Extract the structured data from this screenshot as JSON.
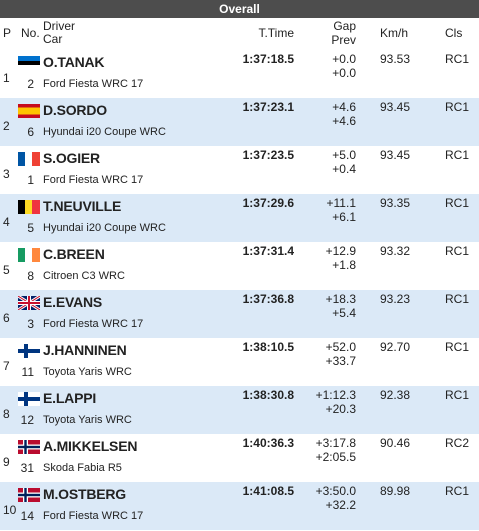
{
  "header": {
    "title": "Overall"
  },
  "columns": {
    "p": "P",
    "no": "No.",
    "driver": "Driver",
    "car": "Car",
    "time": "T.Time",
    "gap": "Gap",
    "prev": "Prev",
    "kmh": "Km/h",
    "cls": "Cls"
  },
  "rows": [
    {
      "pos": 1,
      "no": 2,
      "driver": "O.TANAK",
      "car": "Ford Fiesta WRC 17",
      "time": "1:37:18.5",
      "gap": "+0.0",
      "prev": "+0.0",
      "kmh": "93.53",
      "cls": "RC1"
    },
    {
      "pos": 2,
      "no": 6,
      "driver": "D.SORDO",
      "car": "Hyundai i20 Coupe WRC",
      "time": "1:37:23.1",
      "gap": "+4.6",
      "prev": "+4.6",
      "kmh": "93.45",
      "cls": "RC1"
    },
    {
      "pos": 3,
      "no": 1,
      "driver": "S.OGIER",
      "car": "Ford Fiesta WRC 17",
      "time": "1:37:23.5",
      "gap": "+5.0",
      "prev": "+0.4",
      "kmh": "93.45",
      "cls": "RC1"
    },
    {
      "pos": 4,
      "no": 5,
      "driver": "T.NEUVILLE",
      "car": "Hyundai i20 Coupe WRC",
      "time": "1:37:29.6",
      "gap": "+11.1",
      "prev": "+6.1",
      "kmh": "93.35",
      "cls": "RC1"
    },
    {
      "pos": 5,
      "no": 8,
      "driver": "C.BREEN",
      "car": "Citroen C3 WRC",
      "time": "1:37:31.4",
      "gap": "+12.9",
      "prev": "+1.8",
      "kmh": "93.32",
      "cls": "RC1"
    },
    {
      "pos": 6,
      "no": 3,
      "driver": "E.EVANS",
      "car": "Ford Fiesta WRC 17",
      "time": "1:37:36.8",
      "gap": "+18.3",
      "prev": "+5.4",
      "kmh": "93.23",
      "cls": "RC1"
    },
    {
      "pos": 7,
      "no": 11,
      "driver": "J.HANNINEN",
      "car": "Toyota Yaris WRC",
      "time": "1:38:10.5",
      "gap": "+52.0",
      "prev": "+33.7",
      "kmh": "92.70",
      "cls": "RC1"
    },
    {
      "pos": 8,
      "no": 12,
      "driver": "E.LAPPI",
      "car": "Toyota Yaris WRC",
      "time": "1:38:30.8",
      "gap": "+1:12.3",
      "prev": "+20.3",
      "kmh": "92.38",
      "cls": "RC1"
    },
    {
      "pos": 9,
      "no": 31,
      "driver": "A.MIKKELSEN",
      "car": "Skoda Fabia R5",
      "time": "1:40:36.3",
      "gap": "+3:17.8",
      "prev": "+2:05.5",
      "kmh": "90.46",
      "cls": "RC2"
    },
    {
      "pos": 10,
      "no": 14,
      "driver": "M.OSTBERG",
      "car": "Ford Fiesta WRC 17",
      "time": "1:41:08.5",
      "gap": "+3:50.0",
      "prev": "+32.2",
      "kmh": "89.98",
      "cls": "RC1"
    }
  ]
}
